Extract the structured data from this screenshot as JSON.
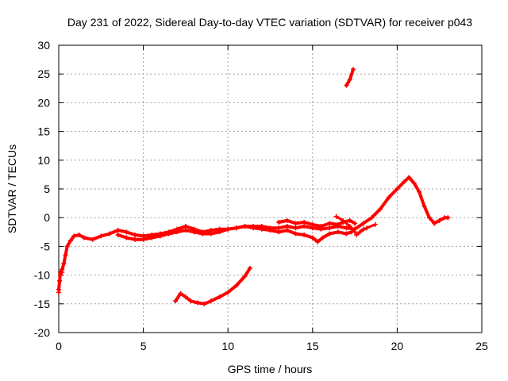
{
  "chart_data": {
    "type": "scatter",
    "title": "Day 231 of 2022, Sidereal Day-to-day VTEC variation (SDTVAR) for receiver p043",
    "xlabel": "GPS time / hours",
    "ylabel": "SDTVAR / TECUs",
    "xlim": [
      0,
      25
    ],
    "ylim": [
      -20,
      30
    ],
    "xticks": [
      0,
      5,
      10,
      15,
      20,
      25
    ],
    "yticks": [
      -20,
      -15,
      -10,
      -5,
      0,
      5,
      10,
      15,
      20,
      25,
      30
    ],
    "grid": true,
    "color": "#ff0000",
    "series": [
      {
        "name": "main-band",
        "points": [
          [
            0.0,
            -12.5
          ],
          [
            0.05,
            -11.0
          ],
          [
            0.1,
            -9.5
          ],
          [
            0.2,
            -9.0
          ],
          [
            0.3,
            -8.0
          ],
          [
            0.4,
            -6.5
          ],
          [
            0.5,
            -5.0
          ],
          [
            0.7,
            -4.0
          ],
          [
            0.9,
            -3.2
          ],
          [
            1.2,
            -3.0
          ],
          [
            1.5,
            -3.5
          ],
          [
            2.0,
            -3.8
          ],
          [
            2.5,
            -3.2
          ],
          [
            3.0,
            -2.8
          ],
          [
            3.5,
            -2.2
          ],
          [
            4.0,
            -2.5
          ],
          [
            4.5,
            -3.0
          ],
          [
            5.0,
            -3.2
          ],
          [
            5.5,
            -3.0
          ],
          [
            6.0,
            -2.8
          ],
          [
            6.5,
            -2.5
          ],
          [
            7.0,
            -2.0
          ],
          [
            7.5,
            -1.5
          ],
          [
            8.0,
            -2.0
          ],
          [
            8.5,
            -2.5
          ],
          [
            9.0,
            -2.2
          ],
          [
            9.5,
            -2.0
          ],
          [
            10.0,
            -2.0
          ],
          [
            10.5,
            -1.8
          ],
          [
            11.0,
            -1.5
          ],
          [
            11.5,
            -1.5
          ],
          [
            12.0,
            -1.5
          ],
          [
            12.5,
            -1.8
          ],
          [
            13.0,
            -1.8
          ],
          [
            13.5,
            -1.5
          ],
          [
            14.0,
            -1.8
          ],
          [
            14.5,
            -1.5
          ],
          [
            15.0,
            -1.8
          ],
          [
            15.5,
            -2.0
          ],
          [
            16.0,
            -1.8
          ],
          [
            16.5,
            -1.5
          ],
          [
            17.0,
            -1.8
          ],
          [
            17.5,
            -2.0
          ],
          [
            18.0,
            -1.0
          ],
          [
            18.5,
            0.0
          ],
          [
            19.0,
            1.5
          ],
          [
            19.5,
            3.5
          ],
          [
            20.0,
            5.0
          ],
          [
            20.4,
            6.2
          ],
          [
            20.7,
            7.0
          ],
          [
            21.0,
            6.0
          ],
          [
            21.3,
            4.5
          ],
          [
            21.6,
            2.0
          ],
          [
            21.9,
            0.0
          ],
          [
            22.2,
            -1.0
          ],
          [
            22.5,
            -0.5
          ],
          [
            22.8,
            0.0
          ],
          [
            23.0,
            0.0
          ]
        ],
        "width": 4
      },
      {
        "name": "lower-band",
        "points": [
          [
            3.5,
            -3.0
          ],
          [
            4.0,
            -3.5
          ],
          [
            4.5,
            -3.8
          ],
          [
            5.0,
            -3.8
          ],
          [
            5.5,
            -3.5
          ],
          [
            6.0,
            -3.2
          ],
          [
            6.5,
            -2.8
          ],
          [
            7.0,
            -2.5
          ],
          [
            7.5,
            -2.2
          ],
          [
            8.0,
            -2.5
          ],
          [
            8.5,
            -2.8
          ],
          [
            9.0,
            -2.8
          ],
          [
            9.5,
            -2.5
          ],
          [
            10.0,
            -2.0
          ],
          [
            10.5,
            -1.8
          ],
          [
            11.0,
            -1.5
          ],
          [
            11.5,
            -1.8
          ],
          [
            12.0,
            -2.0
          ],
          [
            12.5,
            -2.2
          ],
          [
            13.0,
            -2.5
          ],
          [
            13.5,
            -2.2
          ],
          [
            14.0,
            -2.8
          ],
          [
            14.5,
            -3.0
          ],
          [
            15.0,
            -3.5
          ],
          [
            15.3,
            -4.2
          ],
          [
            15.6,
            -3.5
          ],
          [
            16.0,
            -2.8
          ],
          [
            16.5,
            -2.5
          ],
          [
            17.0,
            -2.8
          ],
          [
            17.3,
            -2.5
          ]
        ],
        "width": 4
      },
      {
        "name": "upper-band",
        "points": [
          [
            13.0,
            -0.8
          ],
          [
            13.5,
            -0.5
          ],
          [
            14.0,
            -1.0
          ],
          [
            14.5,
            -0.8
          ],
          [
            15.0,
            -1.2
          ],
          [
            15.5,
            -1.5
          ],
          [
            16.0,
            -1.0
          ],
          [
            16.5,
            -1.2
          ],
          [
            16.8,
            -0.8
          ],
          [
            17.2,
            -0.5
          ],
          [
            17.5,
            -1.0
          ]
        ],
        "width": 4
      },
      {
        "name": "jump-segment",
        "points": [
          [
            16.4,
            0.2
          ],
          [
            16.8,
            -0.5
          ],
          [
            17.2,
            -1.5
          ],
          [
            17.5,
            -2.5
          ]
        ],
        "width": 3
      },
      {
        "name": "tail-segment",
        "points": [
          [
            17.8,
            -2.5
          ],
          [
            18.2,
            -1.8
          ],
          [
            18.7,
            -1.2
          ]
        ],
        "width": 3
      },
      {
        "name": "dip-segment",
        "points": [
          [
            17.6,
            -3.0
          ],
          [
            17.8,
            -2.5
          ],
          [
            18.0,
            -2.0
          ]
        ],
        "width": 3
      },
      {
        "name": "low-arc",
        "points": [
          [
            6.9,
            -14.5
          ],
          [
            7.2,
            -13.2
          ],
          [
            7.5,
            -13.8
          ],
          [
            7.8,
            -14.5
          ],
          [
            8.2,
            -14.8
          ],
          [
            8.6,
            -15.0
          ],
          [
            9.0,
            -14.5
          ],
          [
            9.5,
            -13.8
          ],
          [
            10.0,
            -13.0
          ],
          [
            10.5,
            -11.8
          ],
          [
            11.0,
            -10.2
          ],
          [
            11.3,
            -8.8
          ]
        ],
        "width": 4
      },
      {
        "name": "high-segment",
        "points": [
          [
            17.0,
            23.0
          ],
          [
            17.2,
            24.0
          ],
          [
            17.4,
            25.8
          ]
        ],
        "width": 4
      },
      {
        "name": "start-cluster",
        "points": [
          [
            0.0,
            -13.0
          ],
          [
            0.05,
            -11.0
          ],
          [
            0.1,
            -10.0
          ],
          [
            0.2,
            -9.5
          ]
        ],
        "width": 3
      }
    ]
  }
}
